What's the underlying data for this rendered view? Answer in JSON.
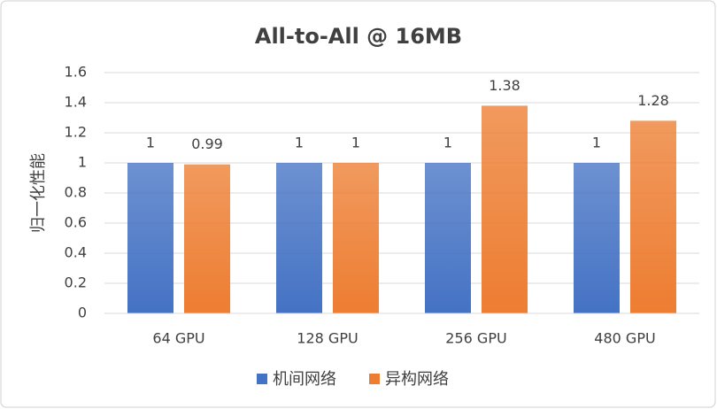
{
  "chart_data": {
    "type": "bar",
    "title": "All-to-All @ 16MB",
    "y_label": "归一化性能",
    "categories": [
      "64 GPU",
      "128 GPU",
      "256 GPU",
      "480 GPU"
    ],
    "series": [
      {
        "name": "机间网络",
        "color": "#4472c4",
        "values": [
          1,
          1,
          1,
          1
        ]
      },
      {
        "name": "异构网络",
        "color": "#ed7d31",
        "values": [
          0.99,
          1,
          1.38,
          1.28
        ]
      }
    ],
    "ylim": [
      0,
      1.6
    ],
    "yticks": [
      0,
      0.2,
      0.4,
      0.6,
      0.8,
      1,
      1.2,
      1.4,
      1.6
    ],
    "grid": true,
    "legend": "bottom"
  }
}
